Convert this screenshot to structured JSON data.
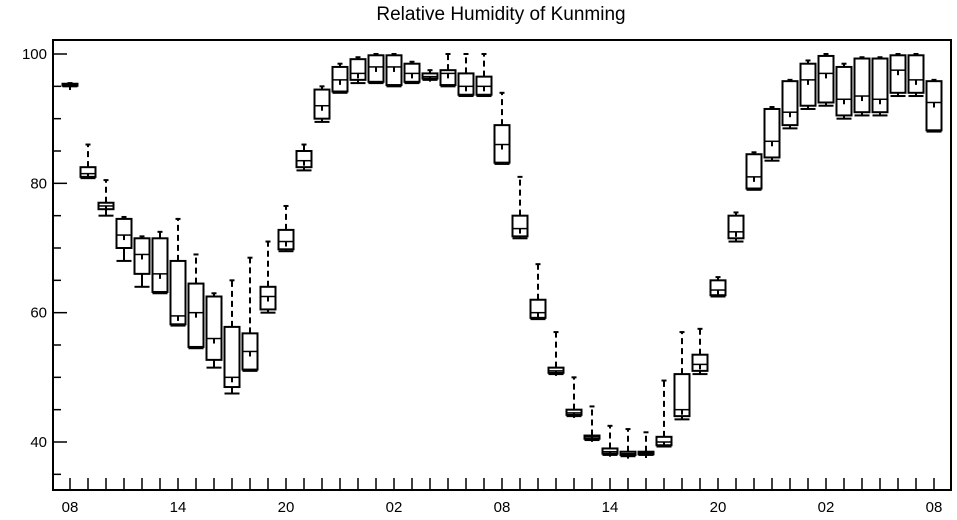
{
  "chart_data": {
    "type": "boxplot",
    "title": "Relative Humidity of Kunming",
    "xlabel": "",
    "ylabel": "",
    "ylim": [
      33,
      102
    ],
    "y_ticks": [
      40,
      60,
      80,
      100
    ],
    "x_tick_labels": [
      "08",
      "14",
      "20",
      "02",
      "08",
      "14",
      "20",
      "02",
      "08"
    ],
    "x_tick_hours": [
      0,
      6,
      12,
      18,
      24,
      30,
      36,
      42,
      48
    ],
    "grid": false,
    "series": [
      {
        "boxes": [
          {
            "hour": 0,
            "min": 95.0,
            "q1": 95.1,
            "median": 95.2,
            "q3": 95.4,
            "max": 95.5
          },
          {
            "hour": 1,
            "min": 80.8,
            "q1": 81.0,
            "median": 81.5,
            "q3": 82.5,
            "max": 86.0
          },
          {
            "hour": 2,
            "min": 75.0,
            "q1": 76.0,
            "median": 76.5,
            "q3": 77.0,
            "max": 80.5
          },
          {
            "hour": 3,
            "min": 68.0,
            "q1": 70.0,
            "median": 72.0,
            "q3": 74.5,
            "max": 74.8
          },
          {
            "hour": 4,
            "min": 64.0,
            "q1": 66.0,
            "median": 69.0,
            "q3": 71.5,
            "max": 71.8
          },
          {
            "hour": 5,
            "min": 63.0,
            "q1": 63.2,
            "median": 66.0,
            "q3": 71.5,
            "max": 72.5
          },
          {
            "hour": 6,
            "min": 58.0,
            "q1": 58.2,
            "median": 59.5,
            "q3": 68.0,
            "max": 74.5
          },
          {
            "hour": 7,
            "min": 54.5,
            "q1": 54.7,
            "median": 60.0,
            "q3": 64.5,
            "max": 69.0
          },
          {
            "hour": 8,
            "min": 51.5,
            "q1": 52.7,
            "median": 56.0,
            "q3": 62.5,
            "max": 63.0
          },
          {
            "hour": 9,
            "min": 47.5,
            "q1": 48.5,
            "median": 50.0,
            "q3": 57.8,
            "max": 65.0
          },
          {
            "hour": 10,
            "min": 51.0,
            "q1": 51.2,
            "median": 54.0,
            "q3": 56.8,
            "max": 68.5
          },
          {
            "hour": 11,
            "min": 60.0,
            "q1": 60.5,
            "median": 62.5,
            "q3": 64.0,
            "max": 71.0
          },
          {
            "hour": 12,
            "min": 69.5,
            "q1": 69.8,
            "median": 71.0,
            "q3": 72.8,
            "max": 76.5
          },
          {
            "hour": 13,
            "min": 82.0,
            "q1": 82.5,
            "median": 83.5,
            "q3": 85.0,
            "max": 86.0
          },
          {
            "hour": 14,
            "min": 89.5,
            "q1": 90.0,
            "median": 92.0,
            "q3": 94.5,
            "max": 95.0
          },
          {
            "hour": 15,
            "min": 94.0,
            "q1": 94.2,
            "median": 96.0,
            "q3": 98.0,
            "max": 98.5
          },
          {
            "hour": 16,
            "min": 95.5,
            "q1": 96.0,
            "median": 97.0,
            "q3": 99.2,
            "max": 99.5
          },
          {
            "hour": 17,
            "min": 95.5,
            "q1": 95.7,
            "median": 98.0,
            "q3": 99.8,
            "max": 100.0
          },
          {
            "hour": 18,
            "min": 95.0,
            "q1": 95.2,
            "median": 98.0,
            "q3": 99.8,
            "max": 100.0
          },
          {
            "hour": 19,
            "min": 95.5,
            "q1": 95.7,
            "median": 97.0,
            "q3": 98.5,
            "max": 98.8
          },
          {
            "hour": 20,
            "min": 96.0,
            "q1": 96.2,
            "median": 96.5,
            "q3": 97.0,
            "max": 97.5
          },
          {
            "hour": 21,
            "min": 95.0,
            "q1": 95.2,
            "median": 97.0,
            "q3": 97.5,
            "max": 100.0
          },
          {
            "hour": 22,
            "min": 93.5,
            "q1": 93.7,
            "median": 95.0,
            "q3": 97.0,
            "max": 100.0
          },
          {
            "hour": 23,
            "min": 93.5,
            "q1": 93.7,
            "median": 95.0,
            "q3": 96.5,
            "max": 100.0
          },
          {
            "hour": 24,
            "min": 83.0,
            "q1": 83.2,
            "median": 86.0,
            "q3": 89.0,
            "max": 94.0
          },
          {
            "hour": 25,
            "min": 71.5,
            "q1": 71.8,
            "median": 73.0,
            "q3": 75.0,
            "max": 81.0
          },
          {
            "hour": 26,
            "min": 59.0,
            "q1": 59.2,
            "median": 60.0,
            "q3": 62.0,
            "max": 67.5
          },
          {
            "hour": 27,
            "min": 50.5,
            "q1": 50.7,
            "median": 51.0,
            "q3": 51.5,
            "max": 57.0
          },
          {
            "hour": 28,
            "min": 44.0,
            "q1": 44.2,
            "median": 44.5,
            "q3": 45.0,
            "max": 50.0
          },
          {
            "hour": 29,
            "min": 40.3,
            "q1": 40.5,
            "median": 40.8,
            "q3": 41.0,
            "max": 45.5
          },
          {
            "hour": 30,
            "min": 38.0,
            "q1": 38.2,
            "median": 38.5,
            "q3": 39.0,
            "max": 42.5
          },
          {
            "hour": 31,
            "min": 37.8,
            "q1": 38.0,
            "median": 38.2,
            "q3": 38.5,
            "max": 42.0
          },
          {
            "hour": 32,
            "min": 38.0,
            "q1": 38.1,
            "median": 38.3,
            "q3": 38.5,
            "max": 41.5
          },
          {
            "hour": 33,
            "min": 39.3,
            "q1": 39.5,
            "median": 40.0,
            "q3": 40.8,
            "max": 49.5
          },
          {
            "hour": 34,
            "min": 43.5,
            "q1": 44.0,
            "median": 45.0,
            "q3": 50.5,
            "max": 57.0
          },
          {
            "hour": 35,
            "min": 50.5,
            "q1": 51.0,
            "median": 52.0,
            "q3": 53.5,
            "max": 57.5
          },
          {
            "hour": 36,
            "min": 62.5,
            "q1": 62.7,
            "median": 63.5,
            "q3": 65.0,
            "max": 65.5
          },
          {
            "hour": 37,
            "min": 71.0,
            "q1": 71.5,
            "median": 72.5,
            "q3": 75.0,
            "max": 75.5
          },
          {
            "hour": 38,
            "min": 79.0,
            "q1": 79.2,
            "median": 81.0,
            "q3": 84.5,
            "max": 84.8
          },
          {
            "hour": 39,
            "min": 83.5,
            "q1": 84.0,
            "median": 86.5,
            "q3": 91.5,
            "max": 91.8
          },
          {
            "hour": 40,
            "min": 88.5,
            "q1": 89.0,
            "median": 91.0,
            "q3": 95.8,
            "max": 96.0
          },
          {
            "hour": 41,
            "min": 91.5,
            "q1": 92.0,
            "median": 96.0,
            "q3": 98.5,
            "max": 99.0
          },
          {
            "hour": 42,
            "min": 92.0,
            "q1": 92.5,
            "median": 97.0,
            "q3": 99.7,
            "max": 100.0
          },
          {
            "hour": 43,
            "min": 90.0,
            "q1": 90.5,
            "median": 93.0,
            "q3": 98.0,
            "max": 98.5
          },
          {
            "hour": 44,
            "min": 90.5,
            "q1": 91.0,
            "median": 93.5,
            "q3": 99.3,
            "max": 99.5
          },
          {
            "hour": 45,
            "min": 90.5,
            "q1": 91.0,
            "median": 93.0,
            "q3": 99.3,
            "max": 99.5
          },
          {
            "hour": 46,
            "min": 93.5,
            "q1": 94.0,
            "median": 97.5,
            "q3": 99.8,
            "max": 100.0
          },
          {
            "hour": 47,
            "min": 93.5,
            "q1": 94.0,
            "median": 96.0,
            "q3": 99.8,
            "max": 100.0
          },
          {
            "hour": 48,
            "min": 88.0,
            "q1": 88.2,
            "median": 92.5,
            "q3": 95.8,
            "max": 96.0
          }
        ]
      }
    ]
  }
}
